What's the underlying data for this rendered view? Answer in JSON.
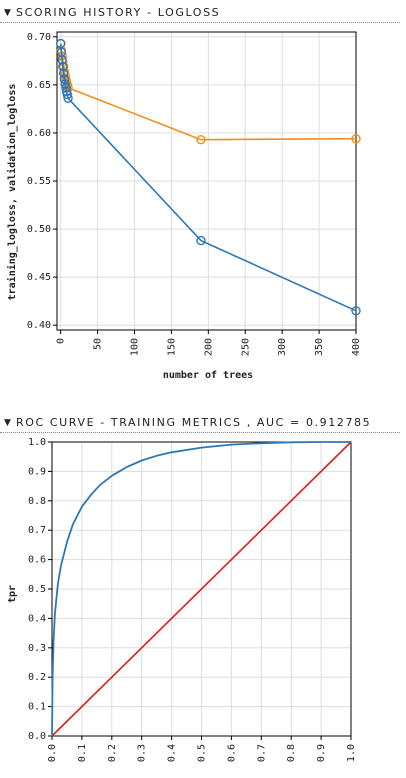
{
  "sections": {
    "scoring": {
      "caret": "▼",
      "title": "SCORING HISTORY - LOGLOSS"
    },
    "roc": {
      "caret": "▼",
      "title": "ROC CURVE - TRAINING METRICS , AUC = 0.912785"
    }
  },
  "colors": {
    "training": "#2b77b8",
    "validation": "#f28e1c",
    "baseline": "#e41a1c",
    "axis": "#000000",
    "grid": "#dddddd"
  },
  "chart_data": [
    {
      "type": "line",
      "title": "SCORING HISTORY - LOGLOSS",
      "xlabel": "number of trees",
      "ylabel": "training_logloss, validation_logloss",
      "xlim": [
        -5,
        400
      ],
      "ylim": [
        0.395,
        0.705
      ],
      "xticks": [
        0,
        50,
        100,
        150,
        200,
        250,
        300,
        350,
        400
      ],
      "yticks": [
        0.4,
        0.45,
        0.5,
        0.55,
        0.6,
        0.65,
        0.7
      ],
      "ytick_labels": [
        "0.40",
        "0.45",
        "0.50",
        "0.55",
        "0.60",
        "0.65",
        "0.70"
      ],
      "grid": true,
      "series": [
        {
          "name": "training_logloss",
          "x": [
            0,
            1,
            2,
            3,
            4,
            5,
            6,
            7,
            8,
            9,
            10,
            190,
            400
          ],
          "y": [
            0.693,
            0.684,
            0.676,
            0.669,
            0.662,
            0.656,
            0.651,
            0.647,
            0.643,
            0.64,
            0.636,
            0.488,
            0.415
          ],
          "marker": "circle"
        },
        {
          "name": "validation_logloss",
          "x": [
            0,
            1,
            2,
            3,
            4,
            5,
            6,
            7,
            8,
            9,
            10,
            190,
            400
          ],
          "y": [
            0.693,
            0.686,
            0.68,
            0.674,
            0.669,
            0.664,
            0.66,
            0.656,
            0.653,
            0.65,
            0.647,
            0.593,
            0.594
          ],
          "marker": "circle"
        }
      ]
    },
    {
      "type": "line",
      "title": "ROC CURVE - TRAINING METRICS , AUC = 0.912785",
      "xlabel": "",
      "ylabel": "tpr",
      "xlim": [
        0,
        1
      ],
      "ylim": [
        0,
        1
      ],
      "xticks": [
        0,
        0.1,
        0.2,
        0.3,
        0.4,
        0.5,
        0.6,
        0.7,
        0.8,
        0.9,
        1.0
      ],
      "xtick_labels": [
        "0.0",
        "0.1",
        "0.2",
        "0.3",
        "0.4",
        "0.5",
        "0.6",
        "0.7",
        "0.8",
        "0.9",
        "1.0"
      ],
      "yticks": [
        0,
        0.1,
        0.2,
        0.3,
        0.4,
        0.5,
        0.6,
        0.7,
        0.8,
        0.9,
        1.0
      ],
      "ytick_labels": [
        "0.0",
        "0.1",
        "0.2",
        "0.3",
        "0.4",
        "0.5",
        "0.6",
        "0.7",
        "0.8",
        "0.9",
        "1.0"
      ],
      "grid": true,
      "auc": 0.912785,
      "series": [
        {
          "name": "roc",
          "x": [
            0,
            0.002,
            0.005,
            0.01,
            0.02,
            0.03,
            0.05,
            0.07,
            0.1,
            0.13,
            0.16,
            0.2,
            0.25,
            0.3,
            0.35,
            0.4,
            0.5,
            0.6,
            0.7,
            0.8,
            0.9,
            1.0
          ],
          "y": [
            0,
            0.2,
            0.32,
            0.42,
            0.52,
            0.58,
            0.66,
            0.72,
            0.78,
            0.82,
            0.853,
            0.885,
            0.915,
            0.937,
            0.953,
            0.965,
            0.981,
            0.991,
            0.996,
            0.999,
            1.0,
            1.0
          ]
        },
        {
          "name": "baseline",
          "x": [
            0,
            1
          ],
          "y": [
            0,
            1
          ]
        }
      ]
    }
  ]
}
